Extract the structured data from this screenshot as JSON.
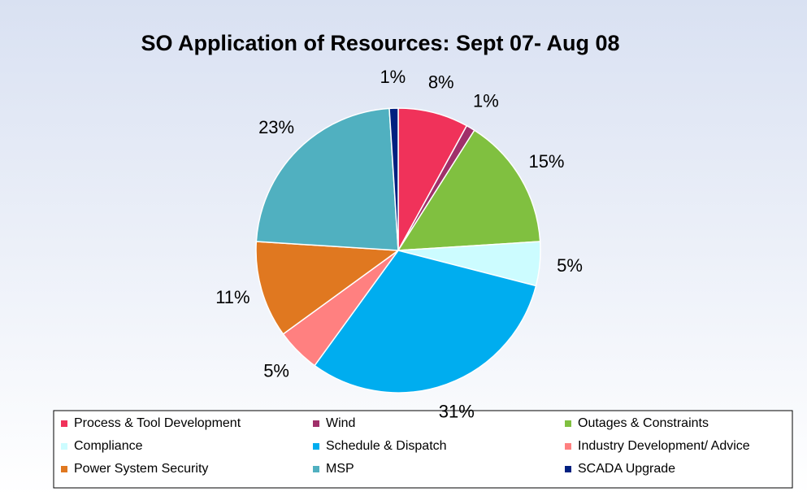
{
  "chart_data": {
    "type": "pie",
    "title": "SO Application of Resources: Sept 07- Aug 08",
    "categories": [
      "Process & Tool Development",
      "Wind",
      "Outages & Constraints",
      "Compliance",
      "Schedule & Dispatch",
      "Industry Development/ Advice",
      "Power System Security",
      "MSP",
      "SCADA Upgrade"
    ],
    "values": [
      8,
      1,
      15,
      5,
      31,
      5,
      11,
      23,
      1
    ],
    "value_labels": [
      "8%",
      "1%",
      "15%",
      "5%",
      "31%",
      "5%",
      "11%",
      "23%",
      "1%"
    ],
    "colors": [
      "#f0325a",
      "#a0306a",
      "#80c040",
      "#ccfcff",
      "#00adef",
      "#ff8080",
      "#e07820",
      "#50b0c0",
      "#002080"
    ],
    "legend": "bottom"
  }
}
